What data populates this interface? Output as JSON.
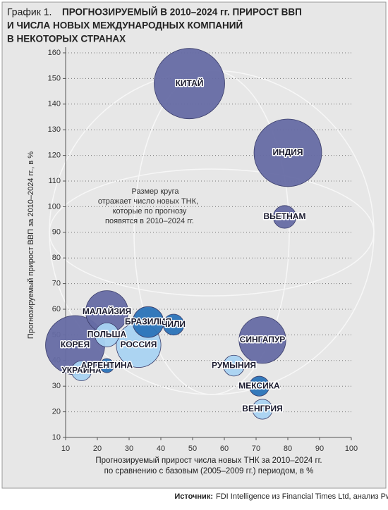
{
  "chart_data": {
    "type": "bubble",
    "title_prefix": "График 1.",
    "title_lines": [
      "ПРОГНОЗИРУЕМЫЙ В 2010–2024 гг. ПРИРОСТ ВВП",
      "И ЧИСЛА НОВЫХ МЕЖДУНАРОДНЫХ КОМПАНИЙ",
      "В НЕКОТОРЫХ СТРАНАХ"
    ],
    "y_label": "Прогнозируемый прирост ВВП за 2010–2024 гг., в %",
    "x_label_lines": [
      "Прогнозируемый прирост числа новых ТНК за 2010–2024 гг.",
      "по сравнению с базовым (2005–2009 гг.) периодом, в %"
    ],
    "annotation_lines": [
      "Размер круга",
      "отражает число новых ТНК,",
      "которые по прогнозу",
      "появятся в 2010–2024 гг."
    ],
    "source_label": "Источник:",
    "source_text": "FDI Intelligence из Financial Times Ltd, анализ PwC",
    "labels": [
      "КИТАЙ",
      "ИНДИЯ",
      "ВЬЕТНАМ",
      "КОРЕЯ",
      "МАЛАЙЗИЯ",
      "СИНГАПУР",
      "РОССИЯ",
      "ПОЛЬША",
      "БРАЗИЛИЯ",
      "ЧИЛИ",
      "УКРАИНА",
      "АРГЕНТИНА",
      "РУМЫНИЯ",
      "МЕКСИКА",
      "ВЕНГРИЯ"
    ],
    "x": [
      49,
      80,
      79,
      13,
      23,
      72,
      33,
      23,
      36,
      44,
      15,
      23,
      63,
      71,
      72
    ],
    "values": [
      148,
      121,
      96,
      46,
      59,
      48,
      46,
      50,
      55,
      54,
      36,
      38,
      38,
      30,
      21
    ],
    "sizes": [
      25,
      23,
      2.6,
      17.6,
      9,
      11,
      10,
      2.9,
      4.8,
      2.2,
      2,
      1,
      2.2,
      2,
      2
    ],
    "colors": [
      "#666ca4",
      "#666ca4",
      "#666ca4",
      "#666ca4",
      "#666ca4",
      "#666ca4",
      "#a9d3f2",
      "#a9d3f2",
      "#2a73b8",
      "#2a73b8",
      "#a9d3f2",
      "#2a73b8",
      "#a9d3f2",
      "#2a73b8",
      "#a9d3f2"
    ],
    "xlim": [
      10,
      100
    ],
    "ylim": [
      10,
      160
    ],
    "xticks": [
      10,
      20,
      30,
      40,
      50,
      60,
      70,
      80,
      90,
      100
    ],
    "yticks": [
      10,
      20,
      30,
      40,
      50,
      60,
      70,
      80,
      90,
      100,
      110,
      120,
      130,
      140,
      150,
      160
    ],
    "grid": true
  }
}
